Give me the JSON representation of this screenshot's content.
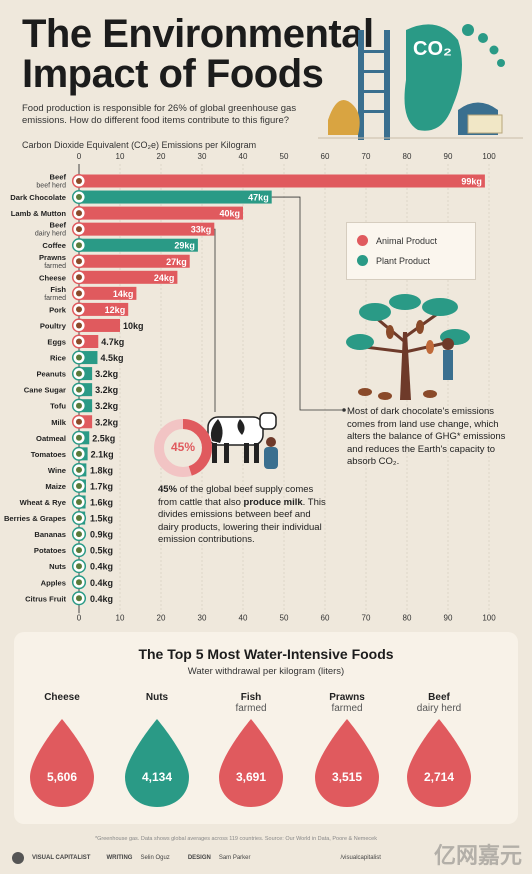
{
  "title_line1": "The Environmental",
  "title_line2": "Impact of Foods",
  "intro": "Food production is responsible for 26% of global greenhouse gas emissions. How do different food items contribute to this figure?",
  "axis_title": "Carbon Dioxide Equivalent (CO₂e) Emissions per Kilogram",
  "legend": {
    "animal": "Animal Product",
    "plant": "Plant Product"
  },
  "colors": {
    "animal": "#e05a5e",
    "plant": "#2a9a86",
    "background": "#efe8dc"
  },
  "illustration_badge": "CO₂",
  "chart_data": {
    "type": "bar",
    "orientation": "horizontal",
    "unit": "kg",
    "xlim": [
      0,
      100
    ],
    "xticks": [
      0,
      10,
      20,
      30,
      40,
      50,
      60,
      70,
      80,
      90,
      100
    ],
    "title": "Carbon Dioxide Equivalent (CO₂e) Emissions per Kilogram",
    "items": [
      {
        "name": "Beef",
        "sub": "beef herd",
        "value": 99,
        "label": "99kg",
        "type": "animal"
      },
      {
        "name": "Dark Chocolate",
        "sub": "",
        "value": 47,
        "label": "47kg",
        "type": "plant"
      },
      {
        "name": "Lamb & Mutton",
        "sub": "",
        "value": 40,
        "label": "40kg",
        "type": "animal"
      },
      {
        "name": "Beef",
        "sub": "dairy herd",
        "value": 33,
        "label": "33kg",
        "type": "animal"
      },
      {
        "name": "Coffee",
        "sub": "",
        "value": 29,
        "label": "29kg",
        "type": "plant"
      },
      {
        "name": "Prawns",
        "sub": "farmed",
        "value": 27,
        "label": "27kg",
        "type": "animal"
      },
      {
        "name": "Cheese",
        "sub": "",
        "value": 24,
        "label": "24kg",
        "type": "animal"
      },
      {
        "name": "Fish",
        "sub": "farmed",
        "value": 14,
        "label": "14kg",
        "type": "animal"
      },
      {
        "name": "Pork",
        "sub": "",
        "value": 12,
        "label": "12kg",
        "type": "animal"
      },
      {
        "name": "Poultry",
        "sub": "",
        "value": 10,
        "label": "10kg",
        "type": "animal"
      },
      {
        "name": "Eggs",
        "sub": "",
        "value": 4.7,
        "label": "4.7kg",
        "type": "animal"
      },
      {
        "name": "Rice",
        "sub": "",
        "value": 4.5,
        "label": "4.5kg",
        "type": "plant"
      },
      {
        "name": "Peanuts",
        "sub": "",
        "value": 3.2,
        "label": "3.2kg",
        "type": "plant"
      },
      {
        "name": "Cane Sugar",
        "sub": "",
        "value": 3.2,
        "label": "3.2kg",
        "type": "plant"
      },
      {
        "name": "Tofu",
        "sub": "",
        "value": 3.2,
        "label": "3.2kg",
        "type": "plant"
      },
      {
        "name": "Milk",
        "sub": "",
        "value": 3.2,
        "label": "3.2kg",
        "type": "animal"
      },
      {
        "name": "Oatmeal",
        "sub": "",
        "value": 2.5,
        "label": "2.5kg",
        "type": "plant"
      },
      {
        "name": "Tomatoes",
        "sub": "",
        "value": 2.1,
        "label": "2.1kg",
        "type": "plant"
      },
      {
        "name": "Wine",
        "sub": "",
        "value": 1.8,
        "label": "1.8kg",
        "type": "plant"
      },
      {
        "name": "Maize",
        "sub": "",
        "value": 1.7,
        "label": "1.7kg",
        "type": "plant"
      },
      {
        "name": "Wheat & Rye",
        "sub": "",
        "value": 1.6,
        "label": "1.6kg",
        "type": "plant"
      },
      {
        "name": "Berries & Grapes",
        "sub": "",
        "value": 1.5,
        "label": "1.5kg",
        "type": "plant"
      },
      {
        "name": "Bananas",
        "sub": "",
        "value": 0.9,
        "label": "0.9kg",
        "type": "plant"
      },
      {
        "name": "Potatoes",
        "sub": "",
        "value": 0.5,
        "label": "0.5kg",
        "type": "plant"
      },
      {
        "name": "Nuts",
        "sub": "",
        "value": 0.4,
        "label": "0.4kg",
        "type": "plant"
      },
      {
        "name": "Apples",
        "sub": "",
        "value": 0.4,
        "label": "0.4kg",
        "type": "plant"
      },
      {
        "name": "Citrus Fruit",
        "sub": "",
        "value": 0.4,
        "label": "0.4kg",
        "type": "plant"
      }
    ]
  },
  "chocolate_note": "Most of dark chocolate's emissions comes from land use change, which alters the balance of GHG* emissions and reduces the Earth's capacity to absorb CO₂.",
  "beef_note": {
    "donut_value": 45,
    "donut_label": "45%",
    "pct": "45%",
    "text_a": " of the global beef supply comes from cattle that also ",
    "bold": "produce milk",
    "text_b": ". This divides emissions between beef and dairy products, lowering their individual emission contributions."
  },
  "water": {
    "title": "The Top 5 Most Water-Intensive Foods",
    "subtitle": "Water withdrawal per kilogram (liters)",
    "items": [
      {
        "name": "Cheese",
        "sub": "",
        "value": "5,606",
        "color": "#e05a5e"
      },
      {
        "name": "Nuts",
        "sub": "",
        "value": "4,134",
        "color": "#2a9a86"
      },
      {
        "name": "Fish",
        "sub": "farmed",
        "value": "3,691",
        "color": "#e05a5e"
      },
      {
        "name": "Prawns",
        "sub": "farmed",
        "value": "3,515",
        "color": "#e05a5e"
      },
      {
        "name": "Beef",
        "sub": "dairy herd",
        "value": "2,714",
        "color": "#e05a5e"
      }
    ]
  },
  "footer": {
    "note": "*Greenhouse gas. Data shows global averages across 119 countries. Source: Our World in Data, Poore & Nemecek",
    "brand": "VISUAL CAPITALIST",
    "writing_label": "WRITING",
    "writing": "Selin Oguz",
    "design_label": "DESIGN",
    "design": "Sam Parker",
    "handle": "/visualcapitalist"
  },
  "watermark": "亿网嘉元"
}
